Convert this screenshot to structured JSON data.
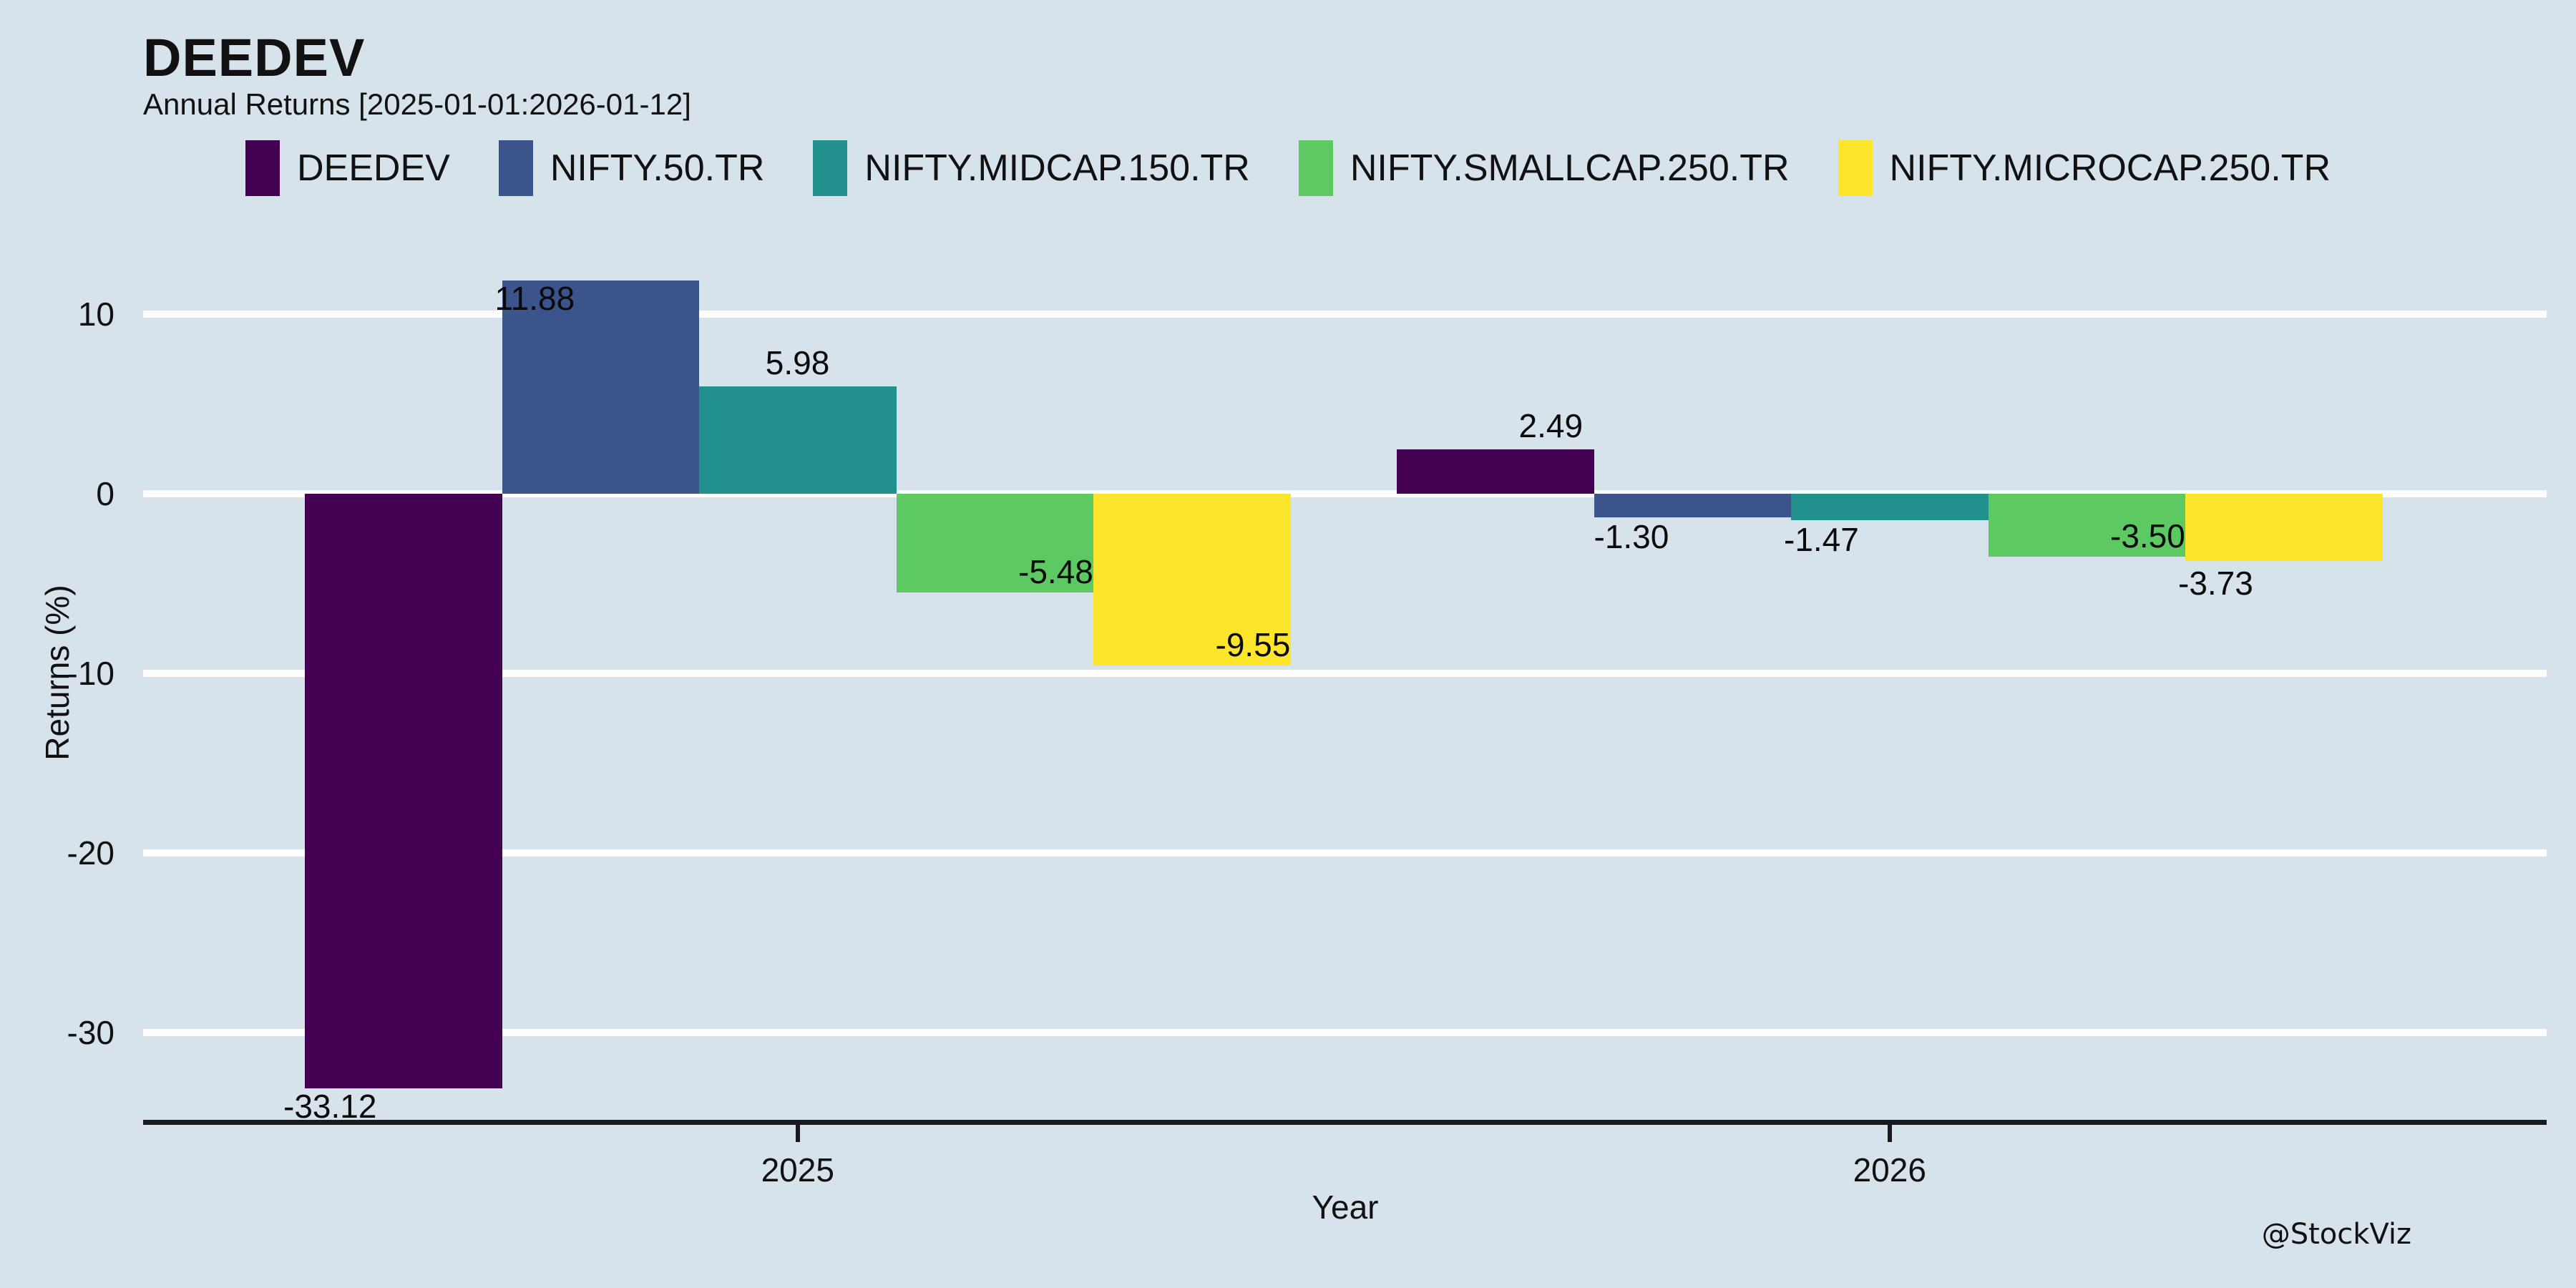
{
  "page": {
    "background_color": "#d6e3ea",
    "watermark": "@StockViz"
  },
  "chart_data": {
    "type": "bar",
    "title": "DEEDEV",
    "subtitle": "Annual Returns [2025-01-01:2026-01-12]",
    "xlabel": "Year",
    "ylabel": "Returns (%)",
    "categories": [
      "2025",
      "2026"
    ],
    "series": [
      {
        "name": "DEEDEV",
        "color": "#440154",
        "values": [
          -33.12,
          2.49
        ],
        "labels": [
          "-33.12",
          "2.49"
        ]
      },
      {
        "name": "NIFTY.50.TR",
        "color": "#3c548c",
        "values": [
          11.88,
          -1.3
        ],
        "labels": [
          "11.88",
          "-1.30"
        ]
      },
      {
        "name": "NIFTY.MIDCAP.150.TR",
        "color": "#22918d",
        "values": [
          5.98,
          -1.47
        ],
        "labels": [
          "5.98",
          "-1.47"
        ]
      },
      {
        "name": "NIFTY.SMALLCAP.250.TR",
        "color": "#5cc963",
        "values": [
          -5.48,
          -3.5
        ],
        "labels": [
          "-5.48",
          "-3.50"
        ]
      },
      {
        "name": "NIFTY.MICROCAP.250.TR",
        "color": "#fce52a",
        "values": [
          -9.55,
          -3.73
        ],
        "labels": [
          "-9.55",
          "-3.73"
        ]
      }
    ],
    "yticks": [
      10,
      0,
      -10,
      -20,
      -30
    ],
    "ytick_labels": [
      "10",
      "0",
      "-10",
      "-20",
      "-30"
    ],
    "ylim": [
      -35.5,
      12.3
    ],
    "grid": {
      "axis": "y",
      "color": "#ffffff",
      "zero_line": true
    },
    "legend_position": "top-center",
    "bar_value_labels_visible": true,
    "annotations": {
      "watermark": "@StockViz"
    }
  }
}
